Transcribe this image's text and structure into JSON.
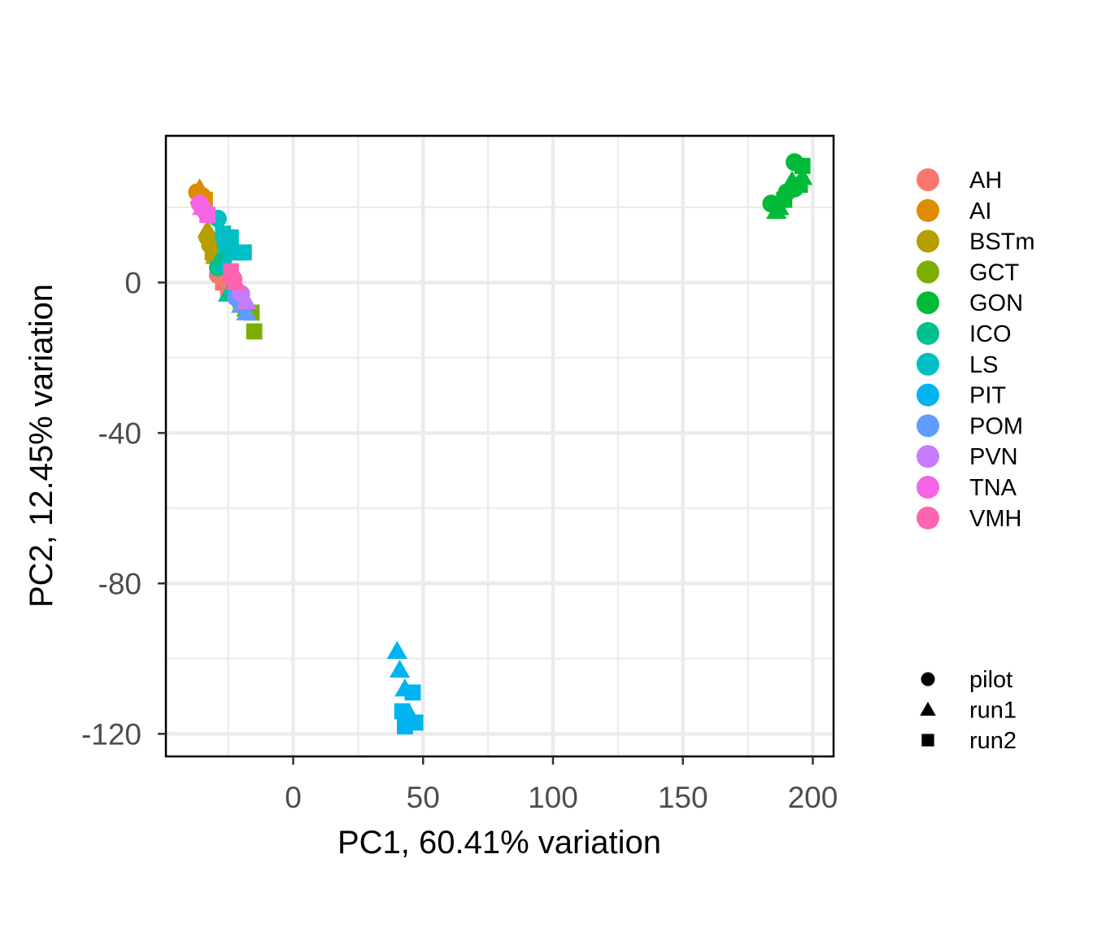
{
  "chart_data": {
    "type": "scatter",
    "title": "",
    "xlabel": "PC1, 60.41% variation",
    "ylabel": "PC2, 12.45% variation",
    "xlim": [
      -49,
      208
    ],
    "ylim": [
      -126,
      39
    ],
    "x_ticks": [
      0,
      50,
      100,
      150,
      200
    ],
    "x_tick_labels": [
      "0",
      "50",
      "100",
      "150",
      "200"
    ],
    "y_ticks": [
      0,
      -40,
      -80,
      -120
    ],
    "y_tick_labels": [
      "0",
      "-40",
      "-80",
      "-120"
    ],
    "grid": true,
    "legend_position": "right",
    "color_legend": [
      {
        "name": "AH",
        "color": "#F8766D"
      },
      {
        "name": "AI",
        "color": "#DE8C00"
      },
      {
        "name": "BSTm",
        "color": "#B79F00"
      },
      {
        "name": "GCT",
        "color": "#7CAE00"
      },
      {
        "name": "GON",
        "color": "#00BA38"
      },
      {
        "name": "ICO",
        "color": "#00C08B"
      },
      {
        "name": "LS",
        "color": "#00BFC4"
      },
      {
        "name": "PIT",
        "color": "#00B4F0"
      },
      {
        "name": "POM",
        "color": "#619CFF"
      },
      {
        "name": "PVN",
        "color": "#C77CFF"
      },
      {
        "name": "TNA",
        "color": "#F564E3"
      },
      {
        "name": "VMH",
        "color": "#FF64B0"
      }
    ],
    "shape_legend": [
      {
        "name": "pilot",
        "shape": "circle"
      },
      {
        "name": "run1",
        "shape": "triangle"
      },
      {
        "name": "run2",
        "shape": "square"
      }
    ],
    "series": [
      {
        "name": "AH",
        "points": [
          {
            "x": -29,
            "y": 2,
            "s": "circle"
          },
          {
            "x": -27,
            "y": 0,
            "s": "square"
          },
          {
            "x": -25,
            "y": -2,
            "s": "square"
          },
          {
            "x": -28,
            "y": 4,
            "s": "triangle"
          },
          {
            "x": -26,
            "y": 1,
            "s": "circle"
          }
        ]
      },
      {
        "name": "AI",
        "points": [
          {
            "x": -37,
            "y": 24,
            "s": "circle"
          },
          {
            "x": -36,
            "y": 25,
            "s": "triangle"
          },
          {
            "x": -35,
            "y": 23,
            "s": "circle"
          },
          {
            "x": -34,
            "y": 22,
            "s": "square"
          },
          {
            "x": -36,
            "y": 23,
            "s": "triangle"
          }
        ]
      },
      {
        "name": "BSTm",
        "points": [
          {
            "x": -33,
            "y": 12,
            "s": "circle"
          },
          {
            "x": -32,
            "y": 10,
            "s": "circle"
          },
          {
            "x": -31,
            "y": 8,
            "s": "square"
          },
          {
            "x": -30,
            "y": 7,
            "s": "triangle"
          },
          {
            "x": -33,
            "y": 14,
            "s": "triangle"
          },
          {
            "x": -31,
            "y": 11,
            "s": "circle"
          }
        ]
      },
      {
        "name": "GCT",
        "points": [
          {
            "x": -20,
            "y": -6,
            "s": "circle"
          },
          {
            "x": -18,
            "y": -7,
            "s": "triangle"
          },
          {
            "x": -16,
            "y": -8,
            "s": "square"
          },
          {
            "x": -15,
            "y": -13,
            "s": "square"
          }
        ]
      },
      {
        "name": "GON",
        "points": [
          {
            "x": 193,
            "y": 32,
            "s": "circle"
          },
          {
            "x": 196,
            "y": 31,
            "s": "square"
          },
          {
            "x": 192,
            "y": 27,
            "s": "triangle"
          },
          {
            "x": 195,
            "y": 26,
            "s": "square"
          },
          {
            "x": 190,
            "y": 24,
            "s": "circle"
          },
          {
            "x": 184,
            "y": 21,
            "s": "circle"
          },
          {
            "x": 187,
            "y": 20,
            "s": "triangle"
          },
          {
            "x": 189,
            "y": 22,
            "s": "square"
          },
          {
            "x": 186,
            "y": 19,
            "s": "triangle"
          },
          {
            "x": 196,
            "y": 28,
            "s": "triangle"
          },
          {
            "x": 193,
            "y": 25,
            "s": "circle"
          }
        ]
      },
      {
        "name": "ICO",
        "points": [
          {
            "x": -29,
            "y": 4,
            "s": "circle"
          },
          {
            "x": -27,
            "y": 6,
            "s": "circle"
          },
          {
            "x": -25,
            "y": -3,
            "s": "triangle"
          }
        ]
      },
      {
        "name": "LS",
        "points": [
          {
            "x": -29,
            "y": 17,
            "s": "circle"
          },
          {
            "x": -27,
            "y": 13,
            "s": "square"
          },
          {
            "x": -24,
            "y": 12,
            "s": "square"
          },
          {
            "x": -22,
            "y": 8,
            "s": "square"
          },
          {
            "x": -19,
            "y": 8,
            "s": "square"
          },
          {
            "x": -26,
            "y": 5,
            "s": "triangle"
          },
          {
            "x": -23,
            "y": -1,
            "s": "triangle"
          },
          {
            "x": -26,
            "y": 10,
            "s": "circle"
          }
        ]
      },
      {
        "name": "PIT",
        "points": [
          {
            "x": 40,
            "y": -98,
            "s": "triangle"
          },
          {
            "x": 41,
            "y": -103,
            "s": "triangle"
          },
          {
            "x": 43,
            "y": -108,
            "s": "triangle"
          },
          {
            "x": 46,
            "y": -109,
            "s": "square"
          },
          {
            "x": 42,
            "y": -114,
            "s": "square"
          },
          {
            "x": 45,
            "y": -115,
            "s": "triangle"
          },
          {
            "x": 47,
            "y": -117,
            "s": "square"
          },
          {
            "x": 43,
            "y": -118,
            "s": "square"
          }
        ]
      },
      {
        "name": "POM",
        "points": [
          {
            "x": -22,
            "y": -4,
            "s": "circle"
          },
          {
            "x": -20,
            "y": -6,
            "s": "triangle"
          },
          {
            "x": -18,
            "y": -8,
            "s": "triangle"
          }
        ]
      },
      {
        "name": "PVN",
        "points": [
          {
            "x": -20,
            "y": -3,
            "s": "circle"
          },
          {
            "x": -18,
            "y": -5,
            "s": "triangle"
          }
        ]
      },
      {
        "name": "TNA",
        "points": [
          {
            "x": -36,
            "y": 21,
            "s": "circle"
          },
          {
            "x": -34,
            "y": 19,
            "s": "circle"
          },
          {
            "x": -33,
            "y": 18,
            "s": "square"
          },
          {
            "x": -35,
            "y": 20,
            "s": "triangle"
          }
        ]
      },
      {
        "name": "VMH",
        "points": [
          {
            "x": -24,
            "y": 3,
            "s": "square"
          },
          {
            "x": -22,
            "y": 0,
            "s": "triangle"
          },
          {
            "x": -23,
            "y": 1,
            "s": "circle"
          }
        ]
      }
    ]
  }
}
